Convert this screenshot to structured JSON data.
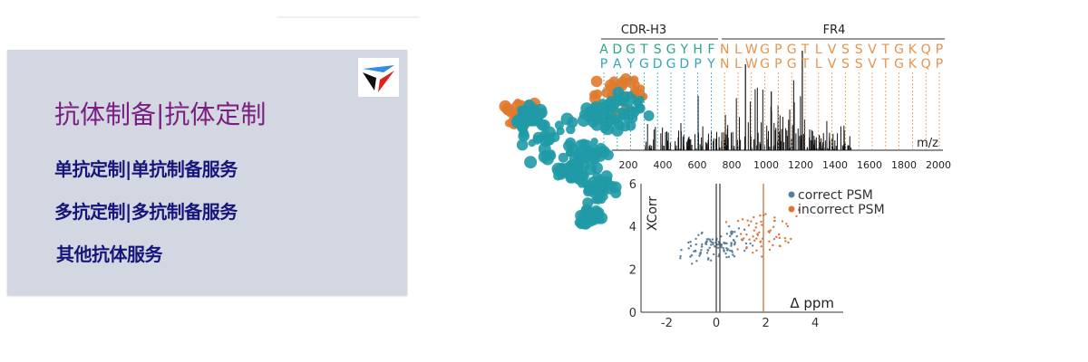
{
  "panel": {
    "title": "抗体制备|抗体定制",
    "links": [
      {
        "label": "单抗定制|单抗制备服务"
      },
      {
        "label": "多抗定制|多抗制备服务"
      },
      {
        "label": "其他抗体服务"
      }
    ],
    "colors": {
      "background": "#d3d7e2",
      "title": "#7a1f80",
      "links": "#16167a"
    }
  },
  "figure": {
    "regions": {
      "cdr": "CDR-H3",
      "fr": "FR4"
    },
    "sequence_top": [
      "A",
      "D",
      "G",
      "T",
      "S",
      "G",
      "Y",
      "H",
      "F",
      "N",
      "L",
      "W",
      "G",
      "P",
      "G",
      "T",
      "L",
      "V",
      "S",
      "S",
      "V",
      "T",
      "G",
      "K",
      "Q",
      "P"
    ],
    "sequence_bottom": [
      "P",
      "A",
      "Y",
      "G",
      "D",
      "G",
      "D",
      "P",
      "Y",
      "N",
      "L",
      "W",
      "G",
      "P",
      "G",
      "T",
      "L",
      "V",
      "S",
      "S",
      "V",
      "T",
      "G",
      "K",
      "Q",
      "P"
    ],
    "spectrum_xlabel": "m/z",
    "spectrum_ticks": [
      "200",
      "400",
      "600",
      "800",
      "1000",
      "1200",
      "1400",
      "1600",
      "1800",
      "2000"
    ],
    "scatter": {
      "ylabel": "XCorr",
      "xlabel": "Δ ppm",
      "yticks": [
        "0",
        "2",
        "4",
        "6"
      ],
      "xticks": [
        "-2",
        "0",
        "2",
        "4"
      ],
      "legend": [
        {
          "label": "correct PSM",
          "color": "#5b7f99"
        },
        {
          "label": "incorrect PSM",
          "color": "#e0733a"
        }
      ]
    },
    "colors": {
      "cdr_letters": "#2aa58c",
      "cdr_letters_alt": "#33a7b5",
      "fr_letters": "#e5944a",
      "molecule_teal": "#1f9aa6",
      "molecule_orange": "#e07a2e"
    }
  }
}
